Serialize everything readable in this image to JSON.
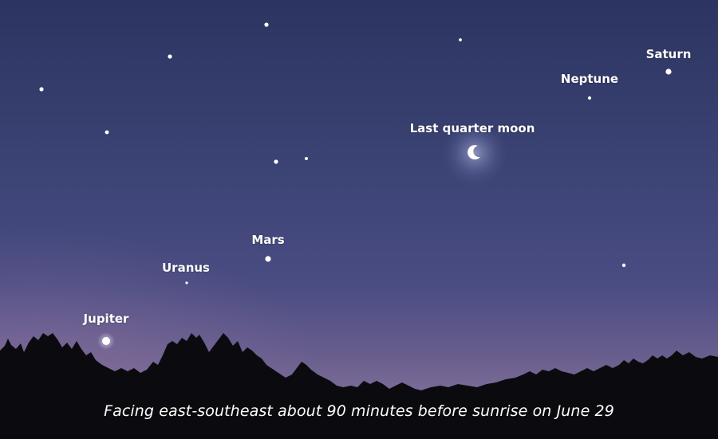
{
  "labels": {
    "saturn": "Saturn",
    "neptune": "Neptune",
    "moon": "Last quarter moon",
    "mars": "Mars",
    "uranus": "Uranus",
    "jupiter": "Jupiter"
  },
  "caption": "Facing east-southeast about 90 minutes before sunrise on June 29",
  "colors": {
    "sky_top": "#2c3461",
    "sky_horizon": "#7d6d98",
    "treeline": "#0b0b0f",
    "label_text": "#ffffff"
  }
}
